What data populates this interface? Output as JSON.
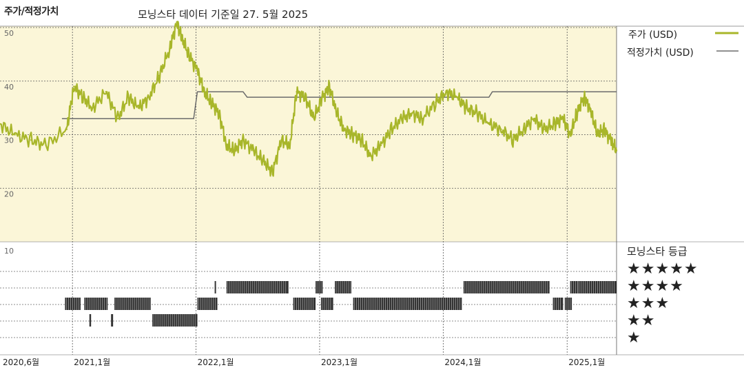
{
  "header": {
    "title": "주가/적정가치",
    "subtitle": "모닝스타 데이터 기준일 27. 5월 2025"
  },
  "legend": {
    "price_label": "주가 (USD)",
    "fair_label": "적정가치 (USD)"
  },
  "rating_panel": {
    "title": "모닝스타 등급",
    "rows": [
      "★★★★★",
      "★★★★",
      "★★★",
      "★★",
      "★"
    ]
  },
  "colors": {
    "price": "#a8b62a",
    "fair": "#6b6b6b",
    "plot_bg": "#fbf6d8",
    "bars": "#333333"
  },
  "chart_data": [
    {
      "type": "line",
      "title": "주가/적정가치",
      "y_tick_labels": [
        "50",
        "40",
        "30",
        "20"
      ],
      "ylim": [
        10,
        52
      ],
      "x_tick_labels": [
        "2020,6월",
        "2021,1월",
        "2022,1월",
        "2023,1월",
        "2024,1월",
        "2025,1월"
      ],
      "x_range": [
        "2020-06-01",
        "2025-05-27"
      ],
      "grid": true,
      "legend_position": "right",
      "series": [
        {
          "name": "주가 (USD)",
          "x": [
            "2020-06-01",
            "2020-07-15",
            "2020-09-01",
            "2020-10-15",
            "2020-12-15",
            "2021-01-05",
            "2021-02-01",
            "2021-03-01",
            "2021-04-10",
            "2021-05-15",
            "2021-06-15",
            "2021-07-15",
            "2021-08-15",
            "2021-09-15",
            "2021-10-15",
            "2021-11-05",
            "2021-11-20",
            "2021-12-10",
            "2022-01-05",
            "2022-01-25",
            "2022-02-15",
            "2022-03-10",
            "2022-04-01",
            "2022-04-25",
            "2022-05-20",
            "2022-06-20",
            "2022-07-20",
            "2022-08-15",
            "2022-09-10",
            "2022-10-05",
            "2022-10-25",
            "2022-11-20",
            "2022-12-15",
            "2023-01-10",
            "2023-01-30",
            "2023-02-20",
            "2023-03-15",
            "2023-04-10",
            "2023-05-05",
            "2023-06-01",
            "2023-07-01",
            "2023-08-01",
            "2023-09-01",
            "2023-10-01",
            "2023-11-01",
            "2023-12-10",
            "2024-01-10",
            "2024-02-10",
            "2024-03-10",
            "2024-04-10",
            "2024-05-15",
            "2024-06-20",
            "2024-07-25",
            "2024-08-25",
            "2024-09-25",
            "2024-10-25",
            "2024-11-25",
            "2024-12-20",
            "2025-01-10",
            "2025-01-30",
            "2025-02-20",
            "2025-03-10",
            "2025-03-31",
            "2025-04-20",
            "2025-05-10",
            "2025-05-27"
          ],
          "values": [
            32,
            30,
            29,
            28,
            31,
            39,
            37,
            35,
            38,
            33,
            37,
            35,
            37,
            41,
            46,
            51,
            48,
            45,
            42,
            38,
            36,
            34,
            28,
            27,
            29,
            27,
            25,
            23,
            29,
            28,
            38,
            37,
            33,
            37,
            39,
            34,
            31,
            30,
            29,
            26,
            28,
            31,
            33,
            34,
            33,
            36,
            38,
            37,
            35,
            34,
            32,
            31,
            29,
            31,
            33,
            31,
            32,
            33,
            30,
            34,
            37,
            35,
            30,
            31,
            29,
            27
          ]
        },
        {
          "name": "적정가치 (USD)",
          "x": [
            "2020-06-01",
            "2020-12-01",
            "2021-12-25",
            "2022-01-05",
            "2022-05-20",
            "2022-06-01",
            "2024-05-15",
            "2024-05-25",
            "2025-05-27"
          ],
          "values": [
            null,
            33,
            33,
            38,
            38,
            37,
            37,
            38,
            38
          ]
        }
      ]
    },
    {
      "type": "bar",
      "title": "모닝스타 등급",
      "y_tick_labels": [
        "10"
      ],
      "x_range": [
        "2020-06-01",
        "2025-05-27"
      ],
      "rating_periods": [
        {
          "start": "2020-12-10",
          "end": "2021-01-25",
          "stars": 3
        },
        {
          "start": "2021-02-05",
          "end": "2021-04-15",
          "stars": 3
        },
        {
          "start": "2021-02-20",
          "end": "2021-02-25",
          "stars": 2
        },
        {
          "start": "2021-04-25",
          "end": "2021-05-01",
          "stars": 2
        },
        {
          "start": "2021-05-05",
          "end": "2021-08-20",
          "stars": 3
        },
        {
          "start": "2021-08-25",
          "end": "2022-01-05",
          "stars": 2
        },
        {
          "start": "2022-01-05",
          "end": "2022-03-05",
          "stars": 3
        },
        {
          "start": "2022-02-25",
          "end": "2022-03-01",
          "stars": 4
        },
        {
          "start": "2022-04-01",
          "end": "2022-10-01",
          "stars": 4
        },
        {
          "start": "2022-10-15",
          "end": "2022-12-20",
          "stars": 3
        },
        {
          "start": "2023-01-05",
          "end": "2023-02-10",
          "stars": 3
        },
        {
          "start": "2022-12-20",
          "end": "2023-01-10",
          "stars": 4
        },
        {
          "start": "2023-02-15",
          "end": "2023-04-05",
          "stars": 4
        },
        {
          "start": "2023-04-10",
          "end": "2024-02-25",
          "stars": 3
        },
        {
          "start": "2024-03-01",
          "end": "2024-11-10",
          "stars": 4
        },
        {
          "start": "2024-11-20",
          "end": "2024-12-20",
          "stars": 3
        },
        {
          "start": "2024-12-25",
          "end": "2025-01-15",
          "stars": 3
        },
        {
          "start": "2025-01-10",
          "end": "2025-01-31",
          "stars": 4
        },
        {
          "start": "2025-02-01",
          "end": "2025-05-27",
          "stars": 4
        }
      ]
    }
  ]
}
